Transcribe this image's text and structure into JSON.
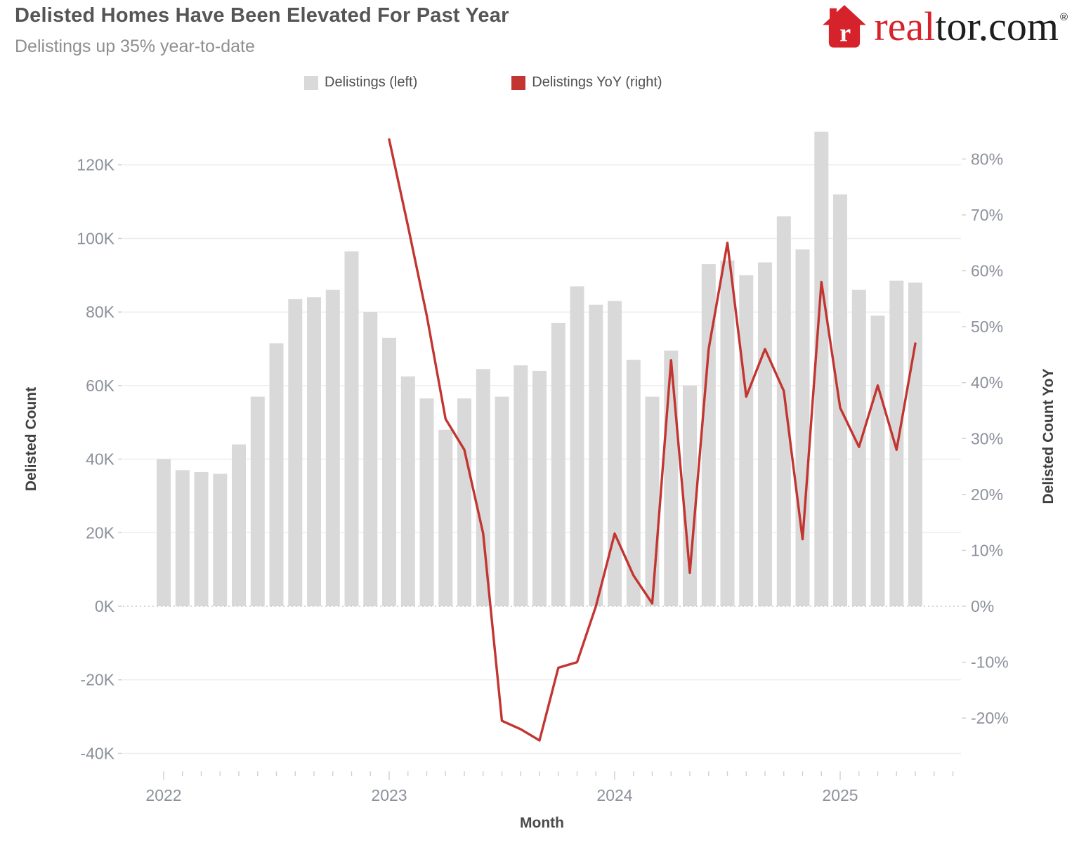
{
  "header": {
    "title": "Delisted Homes Have Been Elevated For Past Year",
    "subtitle": "Delistings up 35% year-to-date",
    "logo": {
      "brand": "realtor.com",
      "house_letter": "r",
      "wordmark_red": "real",
      "wordmark_dark": "tor.com",
      "registered_mark": "®",
      "brand_red": "#d6222a"
    }
  },
  "legend": {
    "items": [
      {
        "label": "Delistings (left)",
        "color": "#d9d9d9"
      },
      {
        "label": "Delistings YoY (right)",
        "color": "#c23531"
      }
    ]
  },
  "chart_data": {
    "type": "combo",
    "title": "Delisted Homes Have Been Elevated For Past Year",
    "subtitle": "Delistings up 35% year-to-date",
    "x_label": "Month",
    "x_months": [
      "Jan 2022",
      "Feb 2022",
      "Mar 2022",
      "Apr 2022",
      "May 2022",
      "Jun 2022",
      "Jul 2022",
      "Aug 2022",
      "Sep 2022",
      "Oct 2022",
      "Nov 2022",
      "Dec 2022",
      "Jan 2023",
      "Feb 2023",
      "Mar 2023",
      "Apr 2023",
      "May 2023",
      "Jun 2023",
      "Jul 2023",
      "Aug 2023",
      "Sep 2023",
      "Oct 2023",
      "Nov 2023",
      "Dec 2023",
      "Jan 2024",
      "Feb 2024",
      "Mar 2024",
      "Apr 2024",
      "May 2024",
      "Jun 2024",
      "Jul 2024",
      "Aug 2024",
      "Sep 2024",
      "Oct 2024",
      "Nov 2024",
      "Dec 2024",
      "Jan 2025",
      "Feb 2025",
      "Mar 2025",
      "Apr 2025",
      "May 2025"
    ],
    "series": [
      {
        "name": "Delistings (left)",
        "type": "bar",
        "axis": "left",
        "unit": "thousands",
        "color": "#d9d9d9",
        "values_k": [
          40,
          37,
          36.5,
          36,
          44,
          57,
          71.5,
          83.5,
          84,
          86,
          96.5,
          80,
          73,
          62.5,
          56.5,
          48,
          56.5,
          64.5,
          57,
          65.5,
          64,
          77,
          87,
          82,
          83,
          67,
          57,
          69.5,
          60,
          93,
          94,
          90,
          93.5,
          106,
          97,
          129,
          112,
          86,
          79,
          88.5,
          88
        ]
      },
      {
        "name": "Delistings YoY (right)",
        "type": "line",
        "axis": "right",
        "unit": "percent",
        "color": "#c23531",
        "values_pct": [
          null,
          null,
          null,
          null,
          null,
          null,
          null,
          null,
          null,
          null,
          null,
          null,
          83.5,
          68,
          52,
          33.5,
          28,
          13,
          -20.5,
          -22,
          -24,
          -11,
          -10,
          0,
          13,
          5.5,
          0.5,
          44,
          6,
          46,
          65,
          37.5,
          46,
          38.5,
          12,
          58,
          35.5,
          28.5,
          39.5,
          28,
          47
        ]
      }
    ],
    "left_axis": {
      "title": "Delisted Count",
      "ticks": [
        "120K",
        "100K",
        "80K",
        "60K",
        "40K",
        "20K",
        "0K",
        "-20K",
        "-40K"
      ],
      "tick_values": [
        120,
        100,
        80,
        60,
        40,
        20,
        0,
        -20,
        -40
      ],
      "range_k": [
        -45,
        133
      ]
    },
    "right_axis": {
      "title": "Delisted Count YoY",
      "ticks": [
        "80%",
        "70%",
        "60%",
        "50%",
        "40%",
        "30%",
        "20%",
        "10%",
        "0%",
        "-10%",
        "-20%"
      ],
      "tick_values": [
        80,
        70,
        60,
        50,
        40,
        30,
        20,
        10,
        0,
        -10,
        -20
      ],
      "range_pct": [
        -32,
        88
      ]
    },
    "x_axis": {
      "title": "Month",
      "year_labels": [
        "2022",
        "2023",
        "2024",
        "2025"
      ],
      "year_month_indices": [
        0,
        12,
        24,
        36
      ]
    },
    "grid": true,
    "zero_line_style": "dotted",
    "legend_position": "top",
    "style": {
      "gridline_color": "#ececec",
      "zero_line_color": "#c9c9c9",
      "tick_label_color": "#8d919b",
      "tick_mark_color": "#d0d0d0",
      "bar_color": "#d9d9d9",
      "line_color": "#c23531"
    }
  }
}
